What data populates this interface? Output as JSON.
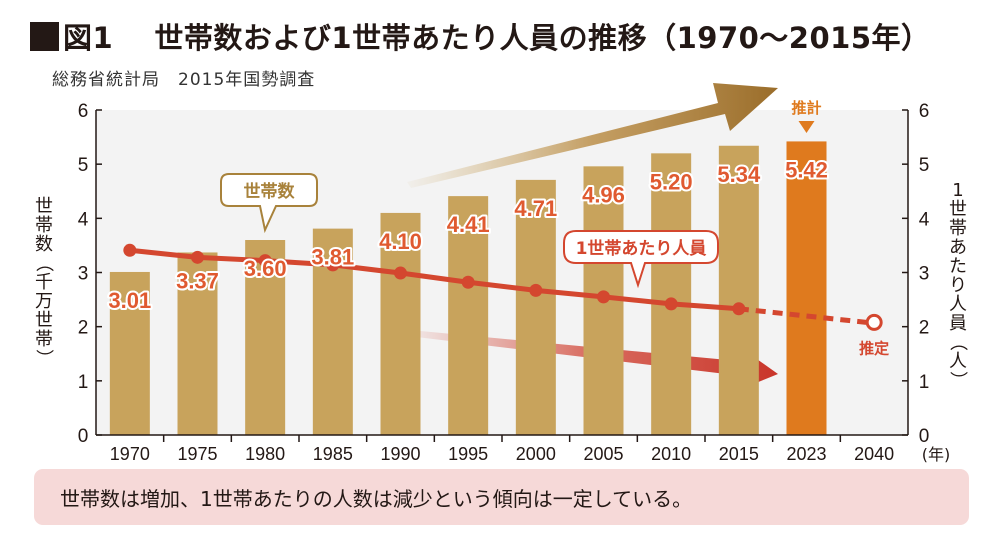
{
  "title": {
    "prefix": "図1",
    "text": "世帯数および1世帯あたり人員の推移（1970〜2015年）"
  },
  "source": "総務省統計局　2015年国勢調査",
  "note": "世帯数は増加、1世帯あたりの人数は減少という傾向は一定している。",
  "colors": {
    "bar": "#c8a35c",
    "bar_highlight": "#df7a1e",
    "bar_label_fill": "#e05a30",
    "bar_label_stroke": "#ffffff",
    "line": "#d4472f",
    "callout_bar_border": "#a8823b",
    "callout_line_border": "#d4472f",
    "arrow_up": "#9a6d2a",
    "arrow_down": "#cf3d2d",
    "note_bg": "#f6d9d8",
    "plot_bg": "#f3f3f3"
  },
  "chart_data": {
    "type": "bar",
    "title": "世帯数および1世帯あたり人員の推移（1970〜2015年）",
    "subtitle": "総務省統計局　2015年国勢調査",
    "categories": [
      "1970",
      "1975",
      "1980",
      "1985",
      "1990",
      "1995",
      "2000",
      "2005",
      "2010",
      "2015",
      "2023",
      "2040"
    ],
    "x_unit_label": "(年)",
    "ylabel_left": "世帯数（千万世帯）",
    "ylabel_right": "1世帯あたり人員（人）",
    "ylim_left": [
      0,
      6
    ],
    "ylim_right": [
      0,
      6
    ],
    "yticks": [
      0,
      1,
      2,
      3,
      4,
      5,
      6
    ],
    "grid": false,
    "series": [
      {
        "name": "世帯数",
        "type": "bar",
        "axis": "left",
        "values": [
          3.01,
          3.37,
          3.6,
          3.81,
          4.1,
          4.41,
          4.71,
          4.96,
          5.2,
          5.34,
          5.42,
          null
        ],
        "labels": [
          "3.01",
          "3.37",
          "3.60",
          "3.81",
          "4.10",
          "4.41",
          "4.71",
          "4.96",
          "5.20",
          "5.34",
          "5.42",
          ""
        ],
        "highlight_index": 10
      },
      {
        "name": "1世帯あたり人員",
        "type": "line",
        "axis": "right",
        "values": [
          3.41,
          3.28,
          3.22,
          3.14,
          2.99,
          2.82,
          2.67,
          2.55,
          2.42,
          2.33,
          null,
          2.08
        ],
        "projected_index": 11
      }
    ],
    "annotations": {
      "bar_callout": "世帯数",
      "line_callout": "1世帯あたり人員",
      "estimate_label": "推計",
      "projection_label": "推定"
    }
  }
}
